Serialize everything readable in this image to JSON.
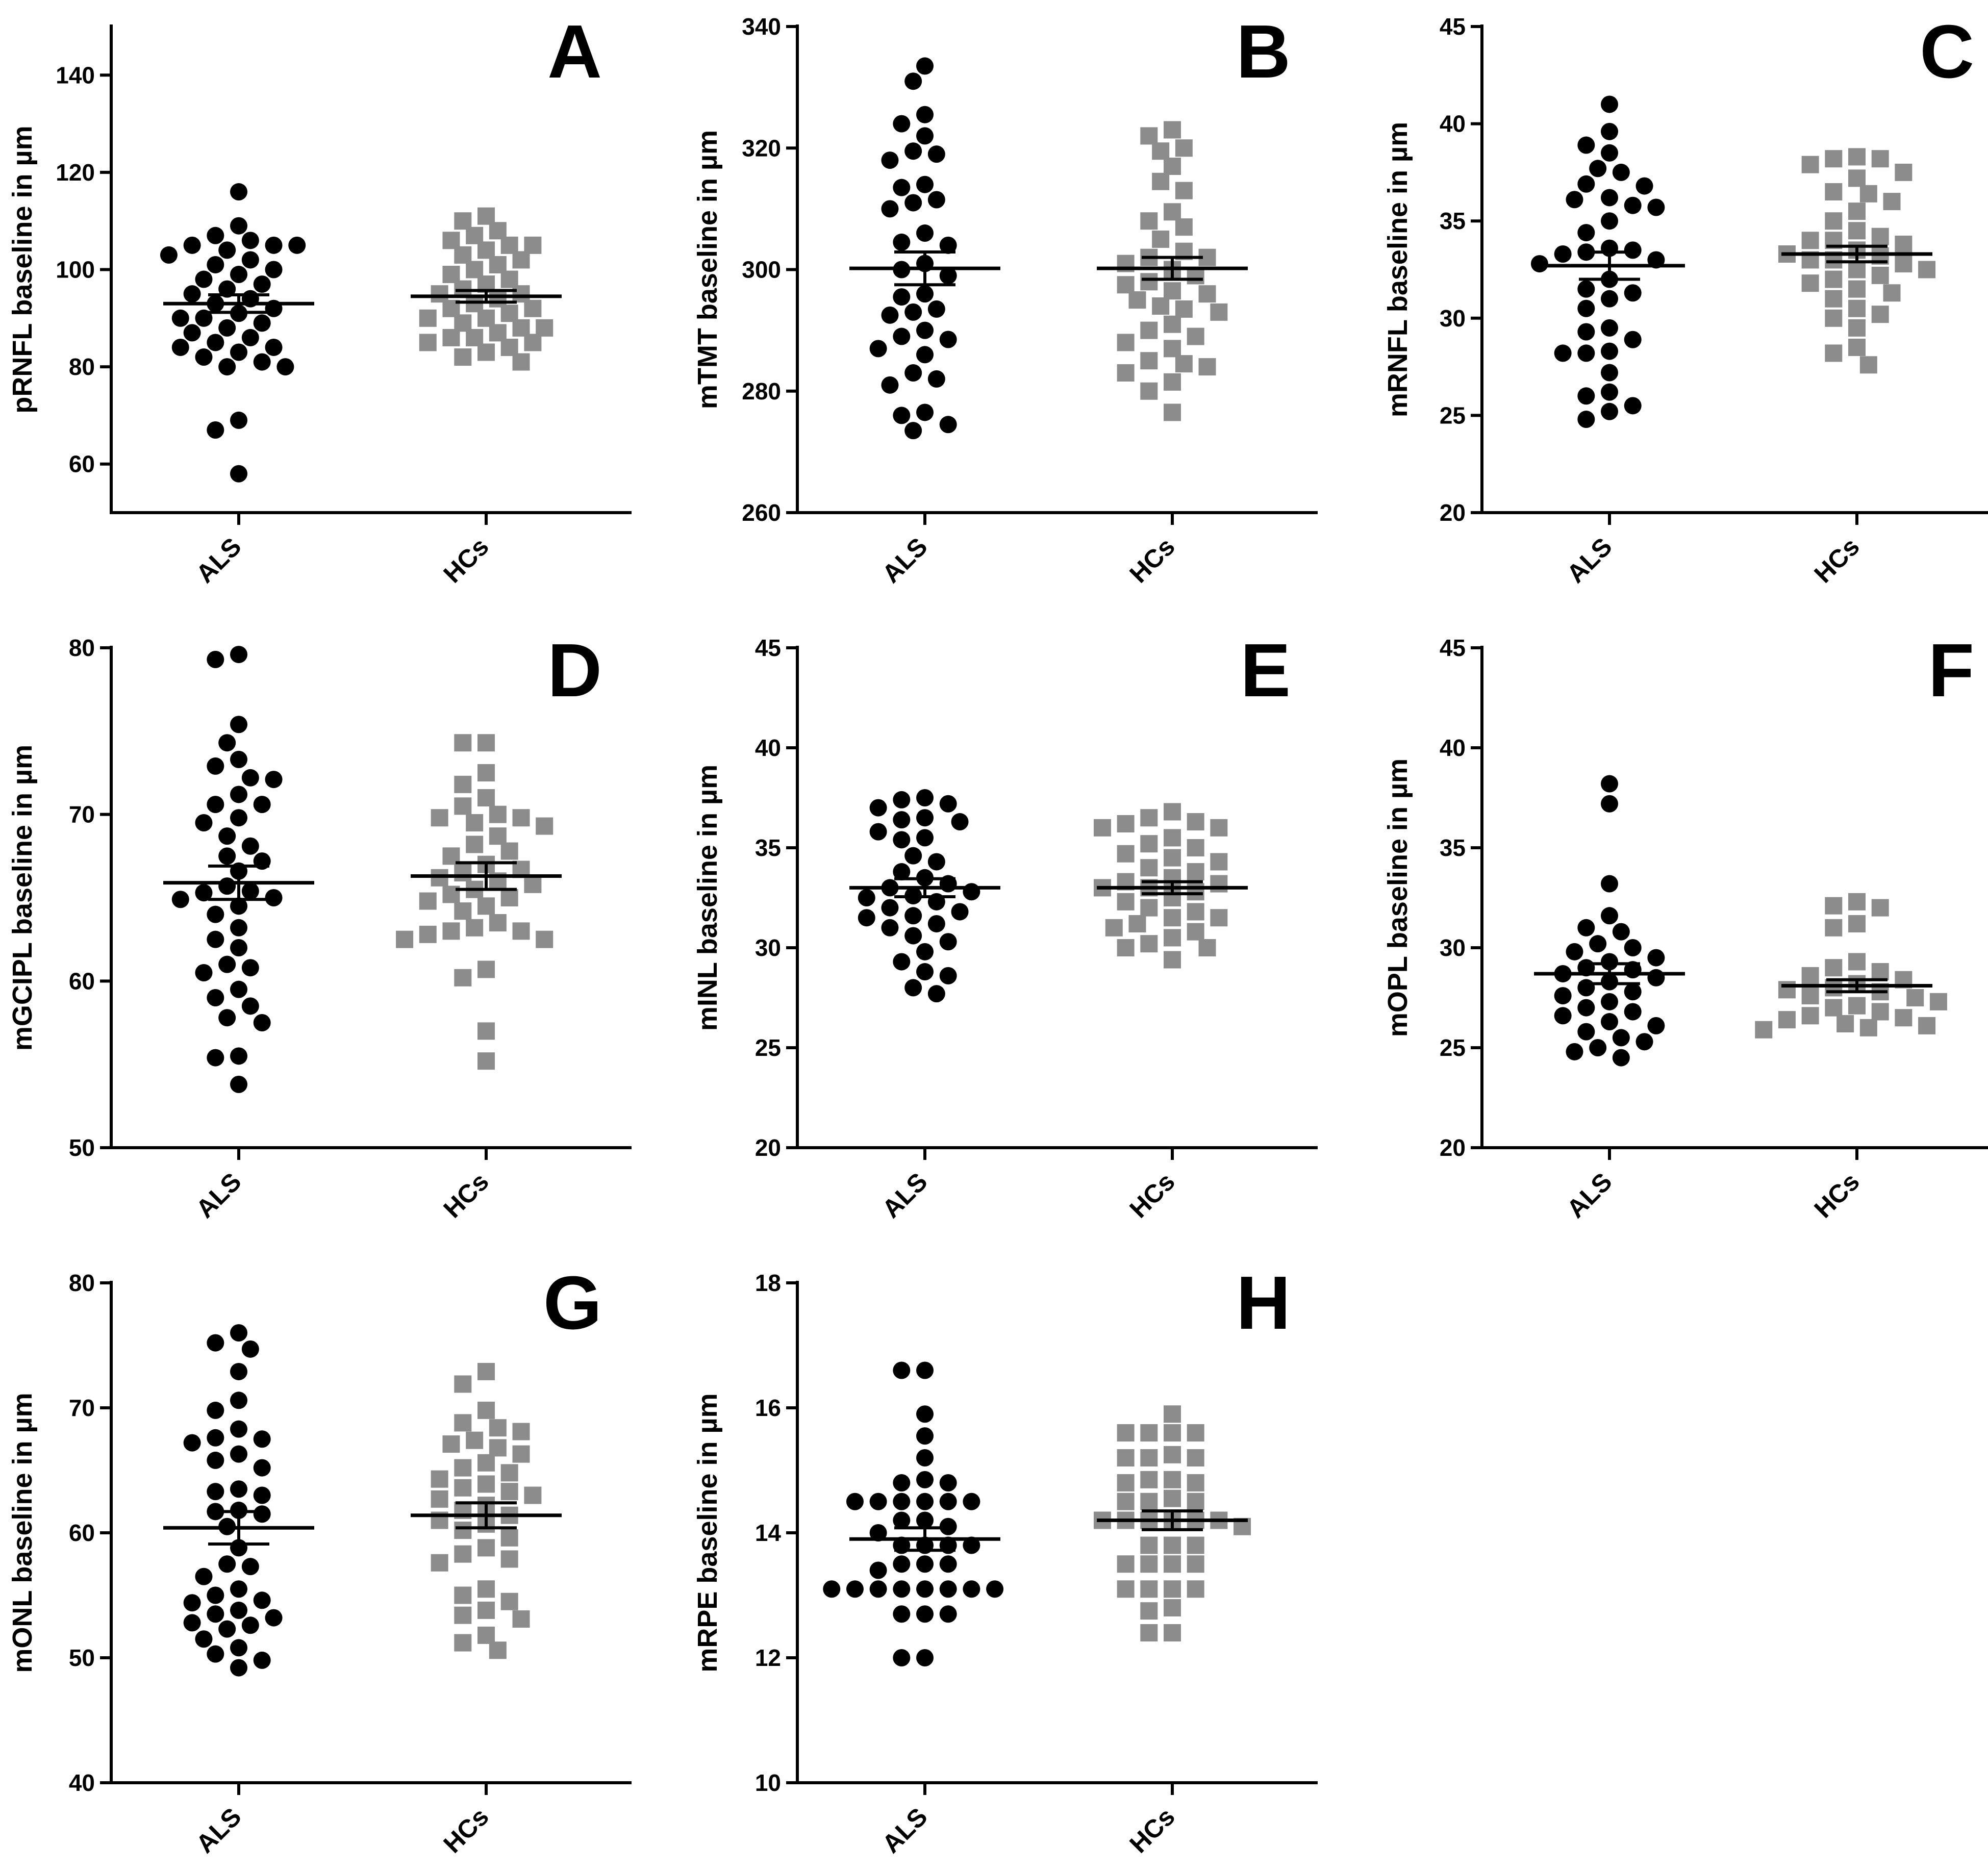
{
  "colors": {
    "als": "#000000",
    "hcs": "#8c8c8c",
    "axis": "#000000",
    "mean_line": "#000000"
  },
  "chart_data": [
    {
      "type": "scatter",
      "panel": "A",
      "ylabel": "pRNFL baseline in µm",
      "ylim": [
        50,
        150
      ],
      "yticks": [
        60,
        80,
        100,
        120,
        140
      ],
      "categories": [
        "ALS",
        "HCs"
      ],
      "series": [
        {
          "name": "ALS",
          "marker": "circle",
          "mean": 93.0,
          "sem": 1.8,
          "values": [
            116,
            109,
            107,
            106,
            105,
            105,
            105,
            104,
            103,
            102,
            101,
            100,
            99,
            98,
            97,
            96,
            95,
            94,
            93,
            92,
            91,
            90,
            90,
            89,
            88,
            87,
            86,
            85,
            84,
            84,
            83,
            82,
            81,
            80,
            80,
            69,
            67,
            58
          ]
        },
        {
          "name": "HCs",
          "marker": "square",
          "mean": 94.5,
          "sem": 1.2,
          "values": [
            111,
            110,
            108,
            107,
            106,
            105,
            105,
            104,
            103,
            102,
            101,
            100,
            99,
            98,
            97,
            96,
            95,
            95,
            94,
            93,
            92,
            92,
            91,
            90,
            90,
            89,
            88,
            88,
            87,
            86,
            86,
            85,
            85,
            84,
            83,
            82,
            81
          ]
        }
      ]
    },
    {
      "type": "scatter",
      "panel": "B",
      "ylabel": "mTMT baseline in µm",
      "ylim": [
        260,
        340
      ],
      "yticks": [
        260,
        280,
        300,
        320,
        340
      ],
      "categories": [
        "ALS",
        "HCs"
      ],
      "series": [
        {
          "name": "ALS",
          "marker": "circle",
          "mean": 300.2,
          "sem": 2.7,
          "values": [
            333.5,
            331,
            325.5,
            324,
            322,
            319.5,
            319,
            318,
            314,
            313.5,
            311.5,
            311,
            310,
            306,
            304.5,
            304,
            301,
            300,
            299,
            296,
            295.5,
            293.5,
            293,
            292.5,
            290,
            289,
            288.5,
            287,
            286,
            283,
            282,
            281,
            276.5,
            276,
            274.5,
            273.5
          ]
        },
        {
          "name": "HCs",
          "marker": "square",
          "mean": 300.2,
          "sem": 1.8,
          "values": [
            323,
            322,
            320,
            319.5,
            317,
            314.5,
            313,
            309.5,
            308,
            307,
            305,
            303,
            302,
            302,
            301,
            300,
            299,
            298,
            297.5,
            296.5,
            296,
            295,
            294,
            293.5,
            293,
            291,
            290,
            289,
            288,
            287,
            285,
            284.5,
            284,
            283,
            281.5,
            280,
            276.5
          ]
        }
      ]
    },
    {
      "type": "scatter",
      "panel": "C",
      "ylabel": "mRNFL baseline in µm",
      "ylim": [
        20,
        45
      ],
      "yticks": [
        20,
        25,
        30,
        35,
        40,
        45
      ],
      "categories": [
        "ALS",
        "HCs"
      ],
      "series": [
        {
          "name": "ALS",
          "marker": "circle",
          "mean": 32.7,
          "sem": 0.7,
          "values": [
            41,
            39.6,
            38.9,
            38.5,
            37.7,
            37.5,
            36.9,
            36.8,
            36.2,
            36.1,
            35.8,
            35.7,
            35,
            34.4,
            33.6,
            33.5,
            33.4,
            33.3,
            33,
            32.8,
            32,
            31.5,
            31.3,
            31,
            30.5,
            29.5,
            29.3,
            28.9,
            28.3,
            28.2,
            28.2,
            27.2,
            26.2,
            26,
            25.5,
            25.2,
            24.8
          ]
        },
        {
          "name": "HCs",
          "marker": "square",
          "mean": 33.3,
          "sem": 0.4,
          "values": [
            38.3,
            38.2,
            38.2,
            37.9,
            37.5,
            37.2,
            36.5,
            36.4,
            36,
            35.5,
            35,
            34.5,
            34.2,
            34,
            34,
            33.8,
            33.5,
            33.3,
            33.2,
            33,
            33,
            32.8,
            32.5,
            32.5,
            32.2,
            32,
            31.8,
            31.5,
            31.3,
            31,
            30.5,
            30.2,
            30,
            29.5,
            28.5,
            28.2,
            27.6
          ]
        }
      ]
    },
    {
      "type": "scatter",
      "panel": "D",
      "ylabel": "mGCIPL baseline in µm",
      "ylim": [
        50,
        80
      ],
      "yticks": [
        50,
        60,
        70,
        80
      ],
      "categories": [
        "ALS",
        "HCs"
      ],
      "series": [
        {
          "name": "ALS",
          "marker": "circle",
          "mean": 65.9,
          "sem": 1.0,
          "values": [
            79.6,
            79.3,
            75.4,
            74.3,
            73.3,
            72.9,
            72.2,
            72.1,
            71.2,
            70.6,
            70.6,
            69.8,
            69.5,
            68.7,
            68.1,
            67.5,
            67.2,
            66.6,
            65.7,
            65.4,
            65.3,
            65,
            64.9,
            64.5,
            64,
            63.2,
            62.5,
            62,
            61,
            60.8,
            60.5,
            59.5,
            59,
            58.5,
            57.8,
            57.5,
            55.5,
            55.4,
            53.8
          ]
        },
        {
          "name": "HCs",
          "marker": "square",
          "mean": 66.3,
          "sem": 0.8,
          "values": [
            74.3,
            74.3,
            72.5,
            71.8,
            71,
            70.5,
            70,
            69.8,
            69.8,
            69.5,
            69.3,
            68.7,
            68.2,
            67.8,
            67.5,
            67,
            66.7,
            66.5,
            66.2,
            66,
            65.8,
            65.5,
            65.2,
            65,
            64.8,
            64.5,
            64.2,
            63.5,
            63.2,
            63,
            63,
            62.8,
            62.5,
            62.5,
            60.7,
            60.2,
            57,
            55.2
          ]
        }
      ]
    },
    {
      "type": "scatter",
      "panel": "E",
      "ylabel": "mINL baseline in µm",
      "ylim": [
        20,
        45
      ],
      "yticks": [
        20,
        25,
        30,
        35,
        40,
        45
      ],
      "categories": [
        "ALS",
        "HCs"
      ],
      "series": [
        {
          "name": "ALS",
          "marker": "circle",
          "mean": 33.0,
          "sem": 0.45,
          "values": [
            37.5,
            37.4,
            37.2,
            37,
            36.5,
            36.4,
            36.3,
            35.8,
            35.5,
            35.4,
            34.6,
            34.3,
            33.8,
            33.5,
            33.2,
            33.0,
            32.8,
            32.6,
            32.5,
            32.3,
            32.0,
            31.8,
            31.6,
            31.5,
            31.2,
            31.0,
            30.6,
            30.3,
            29.8,
            29.3,
            28.8,
            28.6,
            28.0,
            27.7
          ]
        },
        {
          "name": "HCs",
          "marker": "square",
          "mean": 33.0,
          "sem": 0.3,
          "values": [
            36.8,
            36.5,
            36.3,
            36.2,
            36,
            36,
            35.5,
            35.2,
            35,
            34.7,
            34.5,
            34.3,
            34,
            33.8,
            33.5,
            33.3,
            33.2,
            33,
            33,
            32.8,
            32.5,
            32.3,
            32,
            31.8,
            31.5,
            31.5,
            31.2,
            31,
            30.8,
            30.5,
            30.2,
            30,
            30,
            29.4
          ]
        }
      ]
    },
    {
      "type": "scatter",
      "panel": "F",
      "ylabel": "mOPL baseline in µm",
      "ylim": [
        20,
        45
      ],
      "yticks": [
        20,
        25,
        30,
        35,
        40,
        45
      ],
      "categories": [
        "ALS",
        "HCs"
      ],
      "series": [
        {
          "name": "ALS",
          "marker": "circle",
          "mean": 28.7,
          "sem": 0.5,
          "values": [
            38.2,
            37.2,
            33.2,
            31.6,
            31.0,
            30.8,
            30.2,
            30.0,
            29.8,
            29.5,
            29.3,
            29.0,
            28.9,
            28.7,
            28.5,
            28.3,
            28.0,
            27.8,
            27.6,
            27.3,
            27.0,
            26.8,
            26.6,
            26.3,
            26.1,
            25.8,
            25.5,
            25.3,
            25.0,
            24.8,
            24.5
          ]
        },
        {
          "name": "HCs",
          "marker": "square",
          "mean": 28.1,
          "sem": 0.3,
          "values": [
            32.3,
            32.1,
            32.0,
            31.2,
            31.0,
            29.3,
            29.0,
            28.8,
            28.6,
            28.4,
            28.2,
            28.0,
            27.9,
            27.8,
            27.6,
            27.5,
            27.3,
            27.1,
            27.0,
            26.8,
            26.6,
            26.5,
            26.4,
            26.2,
            26.1,
            26.0,
            25.9
          ]
        }
      ]
    },
    {
      "type": "scatter",
      "panel": "G",
      "ylabel": "mONL baseline in µm",
      "ylim": [
        40,
        80
      ],
      "yticks": [
        40,
        50,
        60,
        70,
        80
      ],
      "categories": [
        "ALS",
        "HCs"
      ],
      "series": [
        {
          "name": "ALS",
          "marker": "circle",
          "mean": 60.4,
          "sem": 1.3,
          "values": [
            76,
            75.2,
            74.7,
            72.9,
            70.6,
            69.8,
            68.3,
            67.6,
            67.5,
            67.2,
            66.3,
            65.8,
            65.2,
            63.5,
            63.3,
            63,
            61.8,
            61.7,
            61.5,
            60.5,
            58.8,
            57.5,
            57.3,
            56.5,
            55.5,
            55,
            54.6,
            54.4,
            53.8,
            53.5,
            53.2,
            52.8,
            52.6,
            52.3,
            51.5,
            50.8,
            50.3,
            49.8,
            49.2
          ]
        },
        {
          "name": "HCs",
          "marker": "square",
          "mean": 61.4,
          "sem": 1.0,
          "values": [
            72.9,
            71.9,
            69.8,
            68.8,
            68.4,
            68.1,
            67.4,
            67.1,
            66.8,
            66.3,
            65.6,
            65.2,
            64.8,
            64.3,
            63.9,
            63.6,
            63.3,
            63,
            62.7,
            62.2,
            61.8,
            61.4,
            61,
            60.7,
            60.2,
            59.6,
            58.8,
            58.3,
            57.9,
            57.6,
            55.5,
            55,
            54.5,
            53.8,
            53.4,
            53.1,
            51.8,
            51.2,
            50.6
          ]
        }
      ]
    },
    {
      "type": "scatter",
      "panel": "H",
      "ylabel": "mRPE baseline in µm",
      "ylim": [
        10,
        18
      ],
      "yticks": [
        10,
        12,
        14,
        16,
        18
      ],
      "categories": [
        "ALS",
        "HCs"
      ],
      "series": [
        {
          "name": "ALS",
          "marker": "circle",
          "mean": 13.9,
          "sem": 0.18,
          "values": [
            16.6,
            16.6,
            15.9,
            15.55,
            15.2,
            14.85,
            14.8,
            14.8,
            14.5,
            14.5,
            14.5,
            14.5,
            14.5,
            14.5,
            14.2,
            14.2,
            14.1,
            14.0,
            13.8,
            13.8,
            13.8,
            13.8,
            13.5,
            13.5,
            13.5,
            13.4,
            13.1,
            13.1,
            13.1,
            13.1,
            13.1,
            13.1,
            13.1,
            13.1,
            12.7,
            12.7,
            12.7,
            12.0,
            12.0
          ]
        },
        {
          "name": "HCs",
          "marker": "square",
          "mean": 14.2,
          "sem": 0.15,
          "values": [
            15.9,
            15.6,
            15.6,
            15.6,
            15.6,
            15.25,
            15.2,
            15.2,
            15.2,
            14.85,
            14.85,
            14.8,
            14.8,
            14.55,
            14.5,
            14.5,
            14.5,
            14.2,
            14.2,
            14.2,
            14.2,
            14.2,
            14.2,
            14.1,
            13.8,
            13.8,
            13.8,
            13.5,
            13.5,
            13.5,
            13.5,
            13.1,
            13.1,
            13.1,
            13.1,
            12.8,
            12.75,
            12.4,
            12.4
          ]
        }
      ]
    }
  ]
}
